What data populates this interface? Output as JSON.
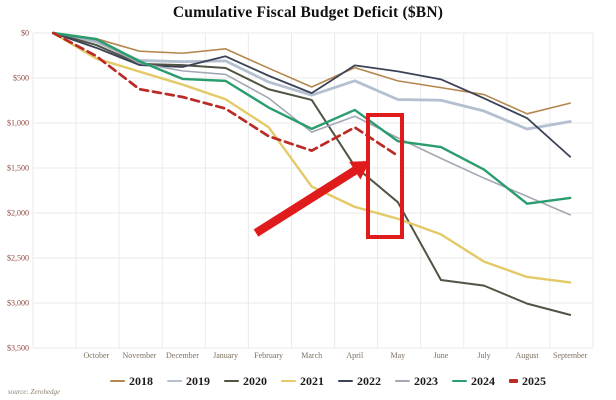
{
  "title": "Cumulative Fiscal Budget Deficit ($BN)",
  "source_note": "source: Zerohedge",
  "axis_colors": {
    "y_labels": "#8f463c",
    "x_labels": "#7b6f5f"
  },
  "chart_data": {
    "type": "line",
    "title": "Cumulative Fiscal Budget Deficit ($BN)",
    "xlabel": "",
    "ylabel": "",
    "categories": [
      "October",
      "November",
      "December",
      "January",
      "February",
      "March",
      "April",
      "May",
      "June",
      "July",
      "August",
      "September"
    ],
    "x_note": "Each line starts at $0 one slot before October (fiscal-year start); values are cumulative deficit in $BN plotted downward",
    "y_tick_labels": [
      "$0",
      "$500",
      "$1,000",
      "$1,500",
      "$2,000",
      "$2,500",
      "$3,000",
      "$3,500"
    ],
    "ylim": [
      0,
      3500
    ],
    "y_direction": "down",
    "grid": true,
    "legend_position": "bottom",
    "series": [
      {
        "name": "2018",
        "color": "#b5874e",
        "width": 1.6,
        "dash": null,
        "values": [
          0,
          63,
          202,
          225,
          176,
          391,
          600,
          385,
          532,
          607,
          684,
          898,
          779
        ]
      },
      {
        "name": "2019",
        "color": "#b4c0cf",
        "width": 2.8,
        "dash": null,
        "values": [
          0,
          100,
          305,
          319,
          310,
          544,
          691,
          531,
          739,
          747,
          867,
          1067,
          984
        ]
      },
      {
        "name": "2020",
        "color": "#4f5443",
        "width": 2.0,
        "dash": null,
        "values": [
          0,
          134,
          343,
          357,
          389,
          625,
          744,
          1481,
          1880,
          2744,
          2807,
          3007,
          3132
        ]
      },
      {
        "name": "2021",
        "color": "#e3ca67",
        "width": 2.4,
        "dash": null,
        "values": [
          0,
          284,
          429,
          573,
          736,
          1047,
          1706,
          1932,
          2064,
          2238,
          2540,
          2711,
          2772
        ]
      },
      {
        "name": "2022",
        "color": "#3c4257",
        "width": 1.8,
        "dash": null,
        "values": [
          0,
          165,
          356,
          378,
          259,
          475,
          668,
          360,
          426,
          515,
          726,
          946,
          1375
        ]
      },
      {
        "name": "2023",
        "color": "#a2a8b4",
        "width": 1.6,
        "dash": null,
        "values": [
          0,
          88,
          336,
          421,
          460,
          723,
          1101,
          925,
          1165,
          1393,
          1613,
          1815,
          2021
        ]
      },
      {
        "name": "2024",
        "color": "#2a9d6e",
        "width": 2.4,
        "dash": null,
        "values": [
          0,
          67,
          314,
          510,
          532,
          828,
          1065,
          855,
          1202,
          1268,
          1517,
          1897,
          1833
        ]
      },
      {
        "name": "2025",
        "color": "#bb2a24",
        "width": 2.7,
        "dash": "8,5",
        "values": [
          0,
          257,
          624,
          711,
          840,
          1147,
          1307,
          1049,
          1365
        ]
      }
    ],
    "annotations": {
      "highlight_box": {
        "label": "April-May 2025 highlight",
        "color": "#e01b1b"
      },
      "arrow": {
        "label": "arrow pointing to 2025 line end",
        "color": "#e01b1b"
      }
    }
  }
}
